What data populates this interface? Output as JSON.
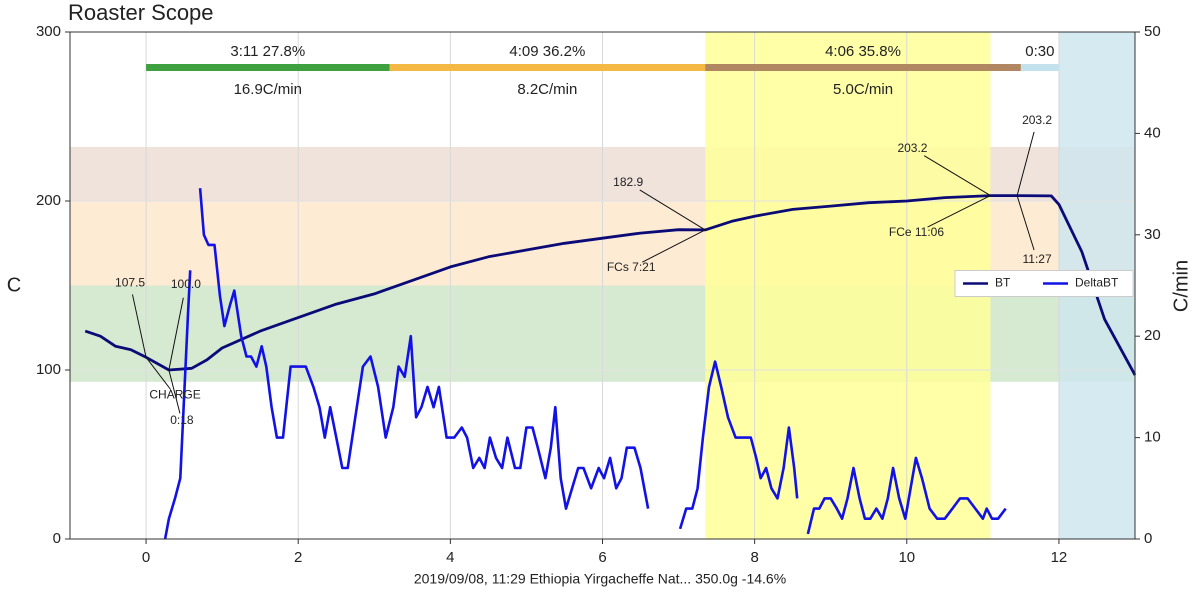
{
  "chart_data": {
    "type": "line",
    "title": "Roaster Scope",
    "ylabel": "C",
    "y2label": "C/min",
    "footer": "2019/09/08, 11:29   Ethiopia Yirgacheffe Nat...   350.0g   -14.6%",
    "xlim": [
      -1,
      13
    ],
    "xticks": [
      0,
      2,
      4,
      6,
      8,
      10,
      12
    ],
    "ylim": [
      0,
      300
    ],
    "yticks": [
      0,
      100,
      200,
      300
    ],
    "y2lim": [
      0,
      50
    ],
    "y2ticks": [
      0,
      10,
      20,
      30,
      40,
      50
    ],
    "grid": true,
    "legend": "center right",
    "series": [
      {
        "name": "BT",
        "color": "#0b0b78",
        "x": [
          -0.8,
          -0.6,
          -0.4,
          -0.2,
          0,
          0.3,
          0.6,
          0.8,
          1,
          1.5,
          2,
          2.5,
          3,
          3.5,
          4,
          4.5,
          5,
          5.5,
          6,
          6.5,
          7,
          7.35,
          7.7,
          8,
          8.5,
          9,
          9.5,
          10,
          10.5,
          11.1,
          11.45,
          11.9,
          12,
          12.3,
          12.6,
          13
        ],
        "values": [
          123,
          120,
          114,
          112,
          107.5,
          100,
          101,
          106,
          113,
          123,
          131,
          139,
          145,
          153,
          161,
          167,
          171,
          175,
          178,
          181,
          183,
          182.9,
          188,
          191,
          195,
          197,
          199,
          200,
          202,
          203.2,
          203.2,
          203,
          198,
          170,
          130,
          97
        ]
      },
      {
        "name": "DeltaBT",
        "color": "#1212e6",
        "axis": "y2",
        "x": [
          0.25,
          0.3,
          0.38,
          0.45,
          0.5,
          0.55,
          0.58,
          0.65,
          0.71,
          0.76,
          0.82,
          0.9,
          0.97,
          1.03,
          1.1,
          1.16,
          1.25,
          1.32,
          1.38,
          1.45,
          1.52,
          1.58,
          1.65,
          1.72,
          1.8,
          1.9,
          2.0,
          2.1,
          2.2,
          2.28,
          2.35,
          2.42,
          2.5,
          2.58,
          2.65,
          2.75,
          2.85,
          2.95,
          3.05,
          3.15,
          3.25,
          3.32,
          3.4,
          3.48,
          3.55,
          3.62,
          3.7,
          3.78,
          3.85,
          3.95,
          4.05,
          4.15,
          4.22,
          4.3,
          4.38,
          4.45,
          4.52,
          4.6,
          4.68,
          4.75,
          4.85,
          4.92,
          5.0,
          5.08,
          5.15,
          5.25,
          5.32,
          5.38,
          5.45,
          5.52,
          5.6,
          5.68,
          5.75,
          5.85,
          5.95,
          6.02,
          6.1,
          6.18,
          6.25,
          6.32,
          6.42,
          6.5,
          6.6,
          6.8,
          7.02,
          7.1,
          7.18,
          7.25,
          7.32,
          7.4,
          7.48,
          7.56,
          7.65,
          7.75,
          7.85,
          7.95,
          8.02,
          8.08,
          8.15,
          8.22,
          8.3,
          8.38,
          8.45,
          8.52,
          8.56,
          8.62,
          8.7,
          8.78,
          8.85,
          8.92,
          9.0,
          9.08,
          9.15,
          9.22,
          9.3,
          9.38,
          9.45,
          9.52,
          9.6,
          9.68,
          9.75,
          9.82,
          9.9,
          9.98,
          10.05,
          10.12,
          10.2,
          10.3,
          10.4,
          10.5,
          10.6,
          10.7,
          10.8,
          10.9,
          11.0,
          11.05,
          11.12,
          11.2,
          11.3
        ],
        "values": [
          0,
          2,
          4,
          6,
          14,
          22,
          26.5,
          null,
          34.6,
          30,
          29,
          29,
          24,
          21,
          23,
          24.5,
          20,
          18,
          18,
          17,
          19,
          17,
          13,
          10,
          10,
          17,
          17,
          17,
          15,
          13,
          10,
          13,
          10,
          7,
          7,
          12,
          17,
          18,
          15,
          10,
          13,
          17,
          16,
          20,
          12,
          13,
          15,
          13,
          15,
          10,
          10,
          11,
          10,
          7,
          8,
          7,
          10,
          8,
          7,
          10,
          7,
          7,
          11,
          11,
          9,
          6,
          9,
          13,
          6,
          3,
          5,
          7,
          7,
          5,
          7,
          6,
          8,
          5,
          6,
          9,
          9,
          7,
          3,
          null,
          1,
          3,
          3,
          5,
          10,
          15,
          17.5,
          15,
          12,
          10,
          10,
          10,
          8,
          6,
          7,
          5,
          4,
          7,
          11,
          7,
          4,
          null,
          0.5,
          3,
          3,
          4,
          4,
          3,
          2,
          4,
          7,
          4,
          2,
          2,
          3,
          2,
          4,
          7,
          4,
          2,
          5,
          8,
          6,
          3,
          2,
          2,
          3,
          4,
          4,
          3,
          2,
          3,
          2,
          2,
          3
        ]
      }
    ],
    "y_bands": [
      {
        "from": 200,
        "to": 232,
        "color": "#efe3dc"
      },
      {
        "from": 150,
        "to": 200,
        "color": "#fdebd4"
      },
      {
        "from": 93,
        "to": 150,
        "color": "#d6ead2"
      }
    ],
    "x_spans": [
      {
        "from": 7.35,
        "to": 11.1,
        "color": "#ffff99"
      },
      {
        "from": 12,
        "to": 13,
        "color": "#cfe6ee"
      }
    ],
    "phases": [
      {
        "start": 0,
        "end": 3.2,
        "color": "#3fa03f",
        "label_top": "3:11  27.8%",
        "label_bottom": "16.9C/min"
      },
      {
        "start": 3.2,
        "end": 7.35,
        "color": "#f4b844",
        "label_top": "4:09  36.2%",
        "label_bottom": "8.2C/min"
      },
      {
        "start": 7.35,
        "end": 11.5,
        "color": "#b08760",
        "label_top": "4:06  35.8%",
        "label_bottom": "5.0C/min"
      },
      {
        "start": 11.5,
        "end": 12,
        "color": "#c4e2ee",
        "label_top": "0:30"
      }
    ],
    "annotations": [
      {
        "text": "107.5",
        "x": 0,
        "y": 107.5
      },
      {
        "text": "CHARGE",
        "x": 0,
        "y": 107.5
      },
      {
        "text": "100.0",
        "x": 0.3,
        "y": 100
      },
      {
        "text": "0:18",
        "x": 0.3,
        "y": 100
      },
      {
        "text": "182.9",
        "x": 7.35,
        "y": 182.9
      },
      {
        "text": "FCs 7:21",
        "x": 7.35,
        "y": 182.9
      },
      {
        "text": "203.2",
        "x": 11.1,
        "y": 203.2
      },
      {
        "text": "FCe 11:06",
        "x": 11.1,
        "y": 203.2
      },
      {
        "text": "203.2",
        "x": 11.45,
        "y": 203.2
      },
      {
        "text": "11:27",
        "x": 11.45,
        "y": 203.2
      }
    ]
  }
}
